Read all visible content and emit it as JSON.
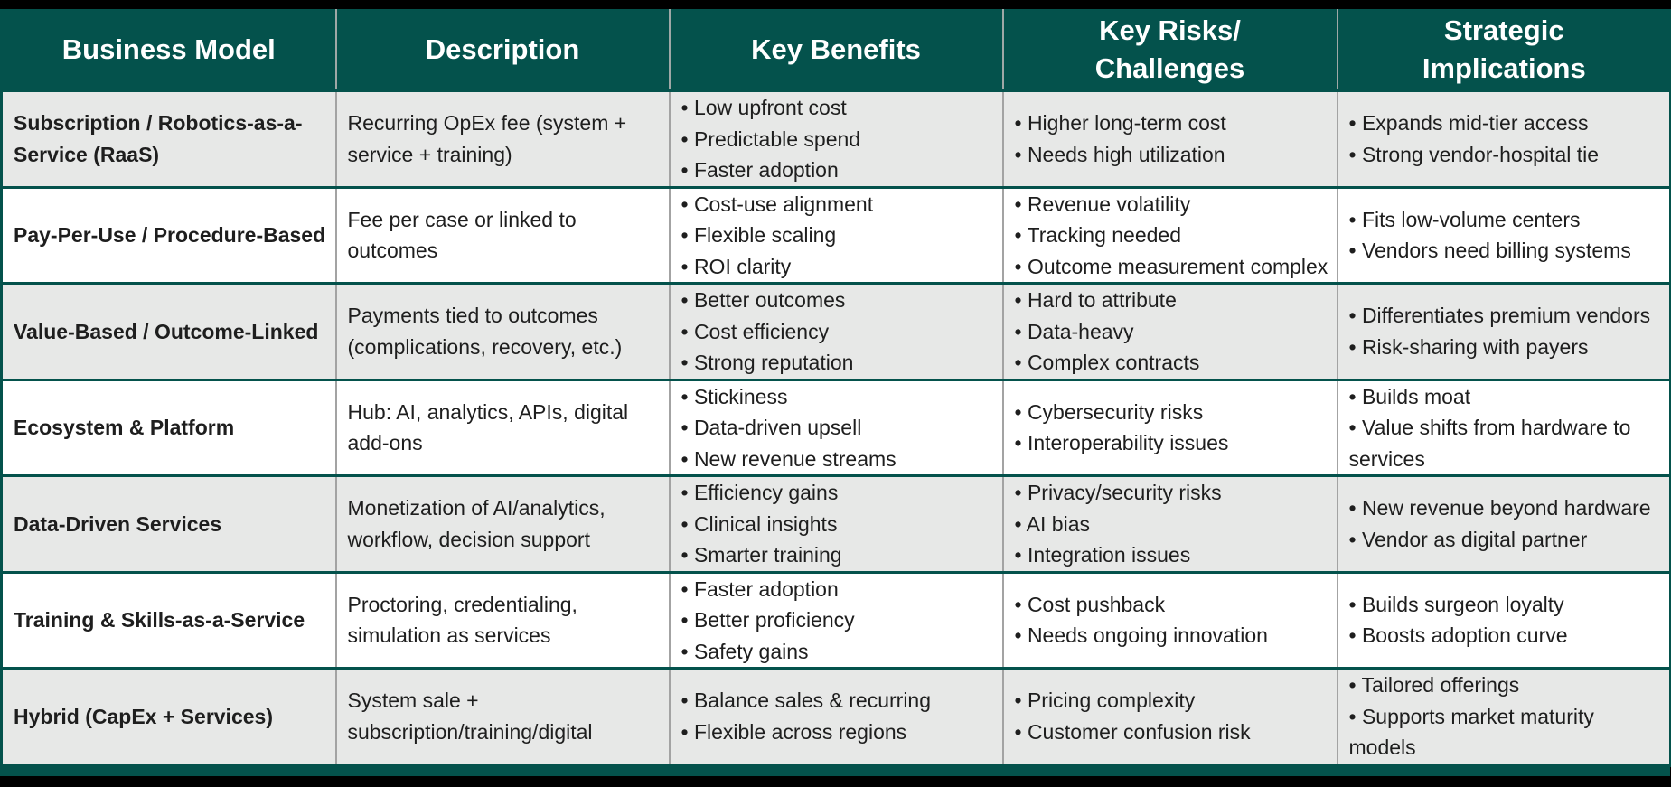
{
  "table": {
    "headers": [
      "Business Model",
      "Description",
      "Key Benefits",
      "Key Risks/ Challenges",
      "Strategic Implications"
    ],
    "rows": [
      {
        "model": "Subscription / Robotics-as-a-Service (RaaS)",
        "description": "Recurring OpEx fee (system + service + training)",
        "benefits": [
          "• Low upfront cost",
          "• Predictable spend",
          "• Faster adoption"
        ],
        "risks": [
          "• Higher long-term cost",
          "• Needs high utilization"
        ],
        "implications": [
          "• Expands mid-tier access",
          "• Strong vendor-hospital tie"
        ]
      },
      {
        "model": "Pay-Per-Use / Procedure-Based",
        "description": "Fee per case or linked to outcomes",
        "benefits": [
          "• Cost-use alignment",
          "• Flexible scaling",
          "• ROI clarity"
        ],
        "risks": [
          "• Revenue volatility",
          "• Tracking needed",
          "• Outcome measurement complex"
        ],
        "implications": [
          "• Fits low-volume centers",
          "• Vendors need billing systems"
        ]
      },
      {
        "model": "Value-Based / Outcome-Linked",
        "description": "Payments tied to outcomes (complications, recovery, etc.)",
        "benefits": [
          "• Better outcomes",
          "• Cost efficiency",
          "• Strong reputation"
        ],
        "risks": [
          "• Hard to attribute",
          "• Data-heavy",
          "• Complex contracts"
        ],
        "implications": [
          "• Differentiates premium vendors",
          "• Risk-sharing with payers"
        ]
      },
      {
        "model": "Ecosystem & Platform",
        "description": "Hub: AI, analytics, APIs, digital add-ons",
        "benefits": [
          "• Stickiness",
          "• Data-driven upsell",
          "• New revenue streams"
        ],
        "risks": [
          "• Cybersecurity risks",
          "• Interoperability issues"
        ],
        "implications": [
          "• Builds moat",
          "• Value shifts from hardware to services"
        ]
      },
      {
        "model": "Data-Driven Services",
        "description": "Monetization of AI/analytics, workflow, decision support",
        "benefits": [
          "• Efficiency gains",
          "• Clinical insights",
          "• Smarter training"
        ],
        "risks": [
          "• Privacy/security risks",
          "• AI bias",
          "• Integration issues"
        ],
        "implications": [
          "• New revenue beyond hardware",
          "• Vendor as digital partner"
        ]
      },
      {
        "model": "Training & Skills-as-a-Service",
        "description": "Proctoring, credentialing, simulation as services",
        "benefits": [
          "• Faster adoption",
          "• Better proficiency",
          "• Safety gains"
        ],
        "risks": [
          "• Cost pushback",
          "• Needs ongoing innovation"
        ],
        "implications": [
          "• Builds surgeon loyalty",
          "• Boosts adoption curve"
        ]
      },
      {
        "model": "Hybrid (CapEx + Services)",
        "description": "System sale + subscription/training/digital",
        "benefits": [
          "• Balance sales & recurring",
          "• Flexible across regions"
        ],
        "risks": [
          "• Pricing complexity",
          "• Customer confusion risk"
        ],
        "implications": [
          "• Tailored offerings",
          "• Supports market maturity models"
        ]
      }
    ]
  },
  "colors": {
    "header_bg": "#04524c",
    "header_text": "#ffffff",
    "row_alt_bg": "#e7e8e7",
    "row_plain_bg": "#ffffff",
    "text": "#1e1e1e",
    "frame": "#000000"
  }
}
